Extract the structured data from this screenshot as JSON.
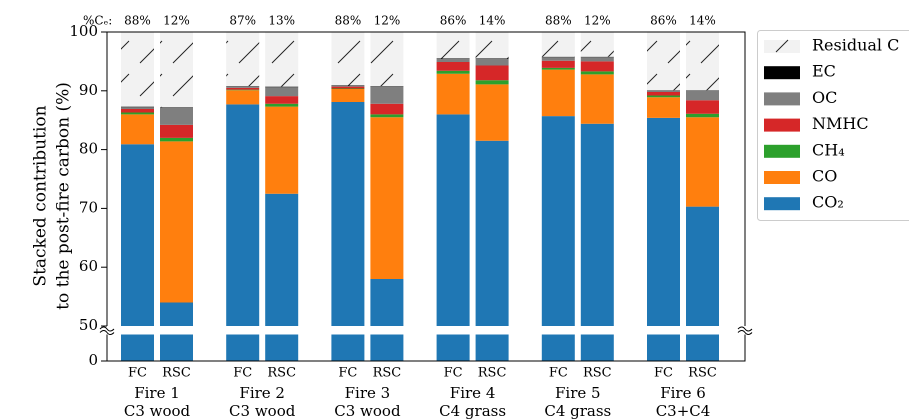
{
  "chart_data": {
    "type": "stacked_bar",
    "y_label": [
      "Stacked contribution",
      "to the post-fire carbon (%)"
    ],
    "ce_label": "%Cₑ:",
    "categories": [
      "FC",
      "RSC",
      "FC",
      "RSC",
      "FC",
      "RSC",
      "FC",
      "RSC",
      "FC",
      "RSC",
      "FC",
      "RSC"
    ],
    "top_labels": [
      "88%",
      "12%",
      "87%",
      "13%",
      "88%",
      "12%",
      "86%",
      "14%",
      "88%",
      "12%",
      "86%",
      "14%"
    ],
    "groups": [
      {
        "name": "Fire 1",
        "fuel": "C3 wood"
      },
      {
        "name": "Fire 2",
        "fuel": "C3 wood"
      },
      {
        "name": "Fire 3",
        "fuel": "C3 wood"
      },
      {
        "name": "Fire 4",
        "fuel": "C4 grass"
      },
      {
        "name": "Fire 5",
        "fuel": "C4 grass"
      },
      {
        "name": "Fire 6",
        "fuel": "C3+C4"
      }
    ],
    "series": [
      {
        "name": "CO₂",
        "color": "#1f77b4",
        "values": [
          80.9,
          54.0,
          87.7,
          72.5,
          88.1,
          58.0,
          86.0,
          81.5,
          85.7,
          84.4,
          85.4,
          70.3
        ]
      },
      {
        "name": "CO",
        "color": "#ff7f0e",
        "values": [
          5.1,
          27.4,
          2.4,
          14.8,
          2.2,
          27.5,
          6.9,
          9.6,
          7.9,
          8.4,
          3.5,
          15.2
        ]
      },
      {
        "name": "CH₄",
        "color": "#2ca02c",
        "values": [
          0.3,
          0.6,
          0.1,
          0.5,
          0.1,
          0.5,
          0.5,
          0.7,
          0.3,
          0.5,
          0.3,
          0.6
        ]
      },
      {
        "name": "NMHC",
        "color": "#d62728",
        "values": [
          0.6,
          2.2,
          0.3,
          1.3,
          0.3,
          1.8,
          1.5,
          2.5,
          1.2,
          1.7,
          0.6,
          2.3
        ]
      },
      {
        "name": "OC",
        "color": "#7f7f7f",
        "values": [
          0.3,
          2.9,
          0.2,
          1.5,
          0.1,
          2.9,
          0.5,
          1.1,
          0.6,
          0.7,
          0.2,
          1.6
        ]
      },
      {
        "name": "EC",
        "color": "#000000",
        "values": [
          0.1,
          0.1,
          0.1,
          0.1,
          0.1,
          0.1,
          0.1,
          0.1,
          0.1,
          0.1,
          0.1,
          0.1
        ]
      },
      {
        "name": "Residual C",
        "color": "#f2f2f2",
        "hatch": true,
        "values": [
          12.7,
          12.8,
          9.2,
          9.3,
          9.1,
          9.2,
          4.5,
          4.5,
          4.2,
          4.2,
          9.9,
          9.9
        ]
      }
    ],
    "ylim": [
      0,
      100
    ],
    "axis_break": [
      4.5,
      50
    ],
    "yticks": [
      0,
      50,
      60,
      70,
      80,
      90,
      100
    ],
    "legend": "outside-upper-right"
  }
}
